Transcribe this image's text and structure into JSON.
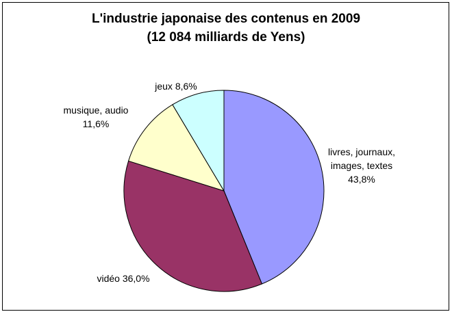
{
  "chart_data": {
    "type": "pie",
    "title": "L'industrie japonaise des contenus en 2009",
    "subtitle": "(12 084 milliards de Yens)",
    "slices": [
      {
        "label_lines": [
          "livres, journaux,",
          "images, textes"
        ],
        "pct_text": "43,8%",
        "value": 43.8,
        "color": "#9999ff"
      },
      {
        "label_lines": [
          "vidéo"
        ],
        "pct_text": "36,0%",
        "value": 36.0,
        "color": "#993366"
      },
      {
        "label_lines": [
          "musique, audio"
        ],
        "pct_text": "11,6%",
        "value": 11.6,
        "color": "#ffffcc"
      },
      {
        "label_lines": [
          "jeux"
        ],
        "pct_text": "8,6%",
        "value": 8.6,
        "color": "#ccffff"
      }
    ],
    "start": "12 o'clock",
    "direction": "clockwise",
    "legend": "none"
  }
}
